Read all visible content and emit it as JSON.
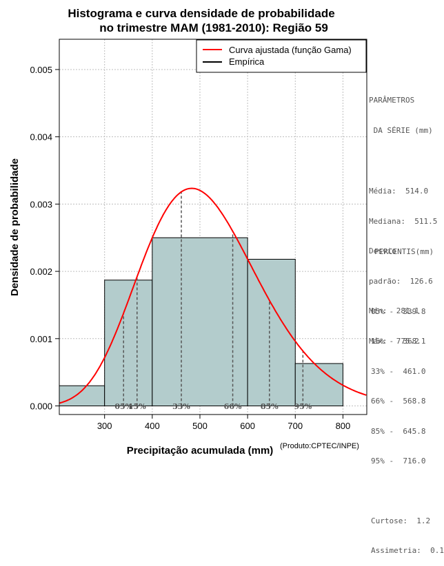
{
  "chart_data": {
    "type": "histogram",
    "title_line1": "Histograma e curva densidade de probabilidade",
    "title_line2": "no trimestre MAM (1981-2010): Região 59",
    "xlabel": "Precipitação acumulada (mm)",
    "ylabel": "Densidade de probabilidade",
    "credit": "(Produto:CPTEC/INPE)",
    "xlim": [
      205,
      850
    ],
    "ylim": [
      -0.000128,
      0.00545
    ],
    "x_ticks": [
      300,
      400,
      500,
      600,
      700,
      800
    ],
    "x_tick_labels": [
      "300",
      "400",
      "500",
      "600",
      "700",
      "800"
    ],
    "y_ticks": [
      0.0,
      0.001,
      0.002,
      0.003,
      0.004,
      0.005
    ],
    "y_tick_labels": [
      "0.000",
      "0.001",
      "0.002",
      "0.003",
      "0.004",
      "0.005"
    ],
    "bins": [
      {
        "from": 200,
        "to": 300,
        "density": 0.0003
      },
      {
        "from": 300,
        "to": 400,
        "density": 0.00187
      },
      {
        "from": 400,
        "to": 600,
        "density": 0.0025
      },
      {
        "from": 600,
        "to": 700,
        "density": 0.00218
      },
      {
        "from": 700,
        "to": 800,
        "density": 0.00063
      }
    ],
    "bar_color": "#b3cccc",
    "curve_color": "#ff0000",
    "gamma_fit": {
      "mean": 514.0,
      "sd": 126.6
    },
    "percentiles": [
      {
        "label": "05%",
        "value": 339.8
      },
      {
        "label": "15%",
        "value": 368.1
      },
      {
        "label": "33%",
        "value": 461.0
      },
      {
        "label": "66%",
        "value": 568.8
      },
      {
        "label": "85%",
        "value": 645.8
      },
      {
        "label": "95%",
        "value": 716.0
      }
    ],
    "legend": [
      {
        "label": "Curva ajustada (função Gama)",
        "color": "#ff0000"
      },
      {
        "label": "Empírica",
        "color": "#000000"
      }
    ],
    "legend_position": "top-right",
    "grid": true
  },
  "side_panel": {
    "params_title_1": "PARÂMETROS",
    "params_title_2": " DA SÉRIE (mm)",
    "params": [
      "Média:  514.0",
      "Mediana:  511.5",
      "Desvio",
      "padrão:  126.6",
      "Mín:  281.1",
      "Máx:  775.2"
    ],
    "percentis_title": "PERCENTIS(mm)",
    "percentis": [
      "05% -  339.8",
      "15% -  368.1",
      "33% -  461.0",
      "66% -  568.8",
      "85% -  645.8",
      "95% -  716.0"
    ],
    "stats": [
      "Curtose:  1.2",
      "Assimetria:  0.1"
    ]
  }
}
